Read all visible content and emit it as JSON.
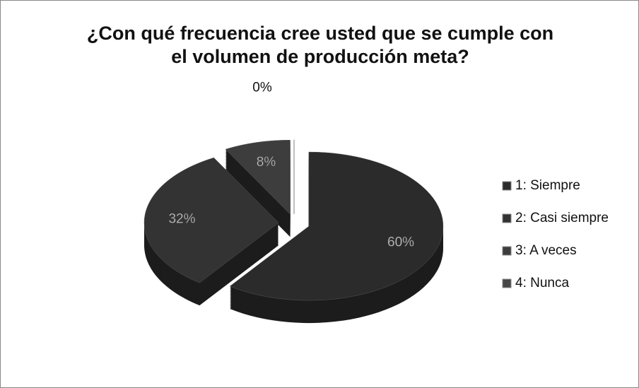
{
  "chart_data": {
    "type": "pie",
    "title": "¿Con qué frecuencia cree usted que se cumple con el volumen de producción meta?",
    "categories": [
      "1: Siempre",
      "2: Casi siempre",
      "3: A veces",
      "4: Nunca"
    ],
    "values": [
      60,
      32,
      8,
      0
    ],
    "value_labels": [
      "60%",
      "32%",
      "8%",
      "0%"
    ],
    "colors": [
      "#2b2b2b",
      "#333333",
      "#3d3d3d",
      "#474747"
    ],
    "legend": "right"
  }
}
